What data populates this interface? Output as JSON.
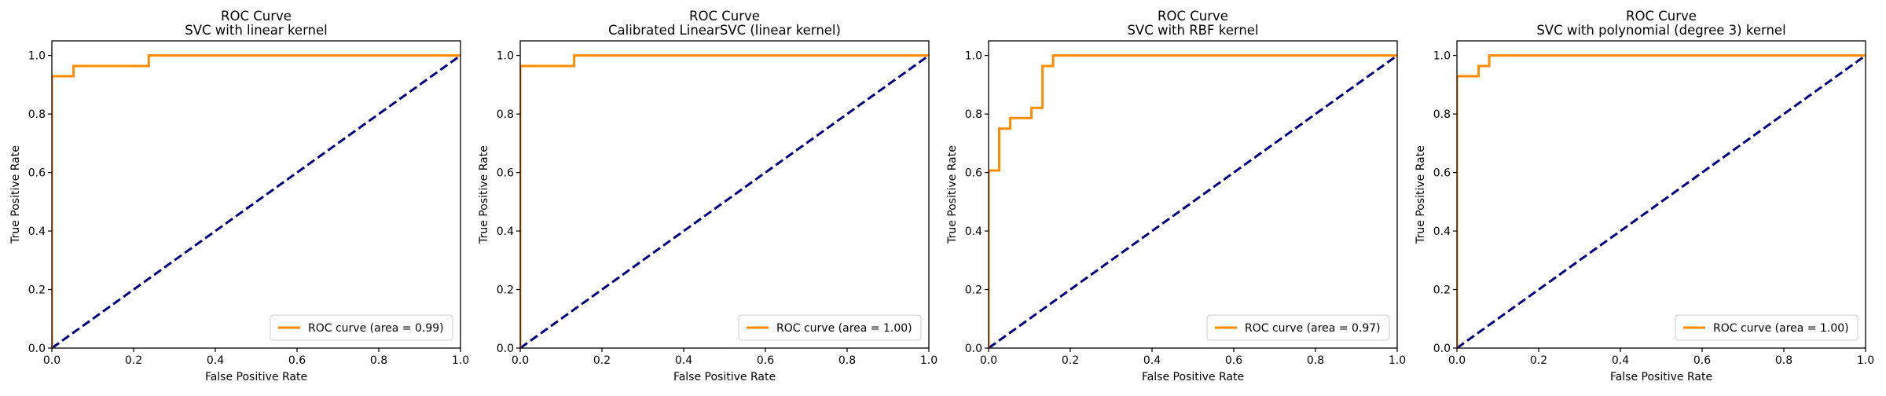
{
  "chart_data": [
    {
      "type": "line",
      "title": "ROC Curve\nSVC with linear kernel",
      "xlabel": "False Positive Rate",
      "ylabel": "True Positive Rate",
      "xlim": [
        0.0,
        1.0
      ],
      "ylim": [
        0.0,
        1.05
      ],
      "xticks": [
        "0.0",
        "0.2",
        "0.4",
        "0.6",
        "0.8",
        "1.0"
      ],
      "yticks": [
        "0.0",
        "0.2",
        "0.4",
        "0.6",
        "0.8",
        "1.0"
      ],
      "grid": false,
      "legend": {
        "position": "lower right",
        "entries": [
          "ROC curve (area = 0.99)"
        ]
      },
      "series": [
        {
          "name": "ROC curve (area = 0.99)",
          "color": "#ff8c00",
          "style": "solid",
          "x": [
            0.0,
            0.0,
            0.0,
            0.053,
            0.053,
            0.237,
            0.237,
            1.0
          ],
          "y": [
            0.0,
            0.929,
            0.929,
            0.929,
            0.964,
            0.964,
            1.0,
            1.0
          ]
        },
        {
          "name": "",
          "color": "#000080",
          "style": "dashed",
          "x": [
            0,
            1
          ],
          "y": [
            0,
            1
          ]
        }
      ]
    },
    {
      "type": "line",
      "title": "ROC Curve\nCalibrated LinearSVC (linear kernel)",
      "xlabel": "False Positive Rate",
      "ylabel": "True Positive Rate",
      "xlim": [
        0.0,
        1.0
      ],
      "ylim": [
        0.0,
        1.05
      ],
      "xticks": [
        "0.0",
        "0.2",
        "0.4",
        "0.6",
        "0.8",
        "1.0"
      ],
      "yticks": [
        "0.0",
        "0.2",
        "0.4",
        "0.6",
        "0.8",
        "1.0"
      ],
      "grid": false,
      "legend": {
        "position": "lower right",
        "entries": [
          "ROC curve (area = 1.00)"
        ]
      },
      "series": [
        {
          "name": "ROC curve (area = 1.00)",
          "color": "#ff8c00",
          "style": "solid",
          "x": [
            0.0,
            0.0,
            0.132,
            0.132,
            1.0
          ],
          "y": [
            0.0,
            0.964,
            0.964,
            1.0,
            1.0
          ]
        },
        {
          "name": "",
          "color": "#000080",
          "style": "dashed",
          "x": [
            0,
            1
          ],
          "y": [
            0,
            1
          ]
        }
      ]
    },
    {
      "type": "line",
      "title": "ROC Curve\nSVC with RBF kernel",
      "xlabel": "False Positive Rate",
      "ylabel": "True Positive Rate",
      "xlim": [
        0.0,
        1.0
      ],
      "ylim": [
        0.0,
        1.05
      ],
      "xticks": [
        "0.0",
        "0.2",
        "0.4",
        "0.6",
        "0.8",
        "1.0"
      ],
      "yticks": [
        "0.0",
        "0.2",
        "0.4",
        "0.6",
        "0.8",
        "1.0"
      ],
      "grid": false,
      "legend": {
        "position": "lower right",
        "entries": [
          "ROC curve (area = 0.97)"
        ]
      },
      "series": [
        {
          "name": "ROC curve (area = 0.97)",
          "color": "#ff8c00",
          "style": "solid",
          "x": [
            0.0,
            0.0,
            0.026,
            0.026,
            0.053,
            0.053,
            0.105,
            0.105,
            0.132,
            0.132,
            0.158,
            0.158,
            1.0
          ],
          "y": [
            0.0,
            0.607,
            0.607,
            0.75,
            0.75,
            0.786,
            0.786,
            0.821,
            0.821,
            0.964,
            0.964,
            1.0,
            1.0
          ]
        },
        {
          "name": "",
          "color": "#000080",
          "style": "dashed",
          "x": [
            0,
            1
          ],
          "y": [
            0,
            1
          ]
        }
      ]
    },
    {
      "type": "line",
      "title": "ROC Curve\nSVC with polynomial (degree 3) kernel",
      "xlabel": "False Positive Rate",
      "ylabel": "True Positive Rate",
      "xlim": [
        0.0,
        1.0
      ],
      "ylim": [
        0.0,
        1.05
      ],
      "xticks": [
        "0.0",
        "0.2",
        "0.4",
        "0.6",
        "0.8",
        "1.0"
      ],
      "yticks": [
        "0.0",
        "0.2",
        "0.4",
        "0.6",
        "0.8",
        "1.0"
      ],
      "grid": false,
      "legend": {
        "position": "lower right",
        "entries": [
          "ROC curve (area = 1.00)"
        ]
      },
      "series": [
        {
          "name": "ROC curve (area = 1.00)",
          "color": "#ff8c00",
          "style": "solid",
          "x": [
            0.0,
            0.0,
            0.053,
            0.053,
            0.079,
            0.079,
            1.0
          ],
          "y": [
            0.0,
            0.929,
            0.929,
            0.964,
            0.964,
            1.0,
            1.0
          ]
        },
        {
          "name": "",
          "color": "#000080",
          "style": "dashed",
          "x": [
            0,
            1
          ],
          "y": [
            0,
            1
          ]
        }
      ]
    }
  ]
}
